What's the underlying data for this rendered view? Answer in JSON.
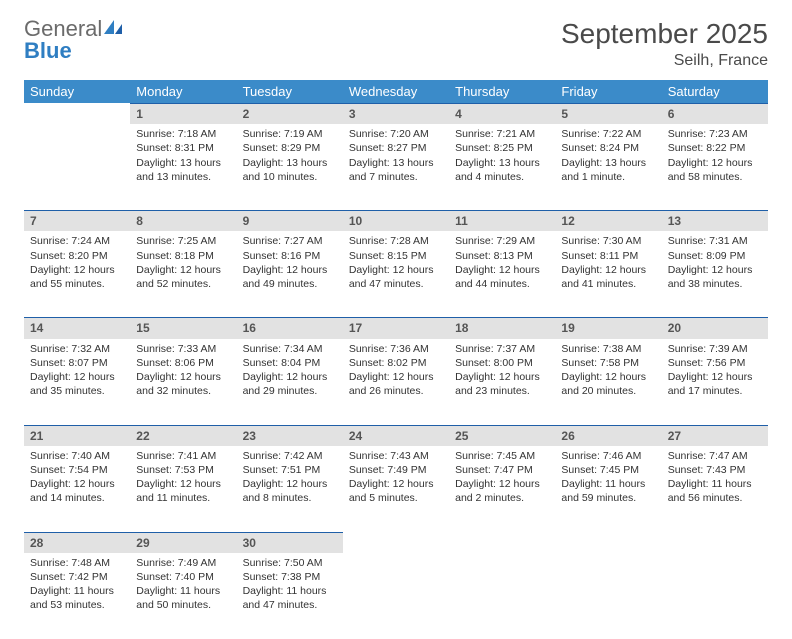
{
  "brand": {
    "general": "General",
    "blue": "Blue"
  },
  "title": {
    "month": "September 2025",
    "location": "Seilh, France"
  },
  "colors": {
    "header_bg": "#3b8bc9",
    "header_text": "#ffffff",
    "daynum_bg": "#e2e2e2",
    "daynum_border": "#1f5fa8",
    "text": "#333333",
    "brand_gray": "#6b6b6b",
    "brand_blue": "#2f7ec2",
    "background": "#ffffff"
  },
  "weekdays": [
    "Sunday",
    "Monday",
    "Tuesday",
    "Wednesday",
    "Thursday",
    "Friday",
    "Saturday"
  ],
  "weeks": [
    [
      {
        "num": "",
        "sunrise": "",
        "sunset": "",
        "daylight": ""
      },
      {
        "num": "1",
        "sunrise": "Sunrise: 7:18 AM",
        "sunset": "Sunset: 8:31 PM",
        "daylight": "Daylight: 13 hours and 13 minutes."
      },
      {
        "num": "2",
        "sunrise": "Sunrise: 7:19 AM",
        "sunset": "Sunset: 8:29 PM",
        "daylight": "Daylight: 13 hours and 10 minutes."
      },
      {
        "num": "3",
        "sunrise": "Sunrise: 7:20 AM",
        "sunset": "Sunset: 8:27 PM",
        "daylight": "Daylight: 13 hours and 7 minutes."
      },
      {
        "num": "4",
        "sunrise": "Sunrise: 7:21 AM",
        "sunset": "Sunset: 8:25 PM",
        "daylight": "Daylight: 13 hours and 4 minutes."
      },
      {
        "num": "5",
        "sunrise": "Sunrise: 7:22 AM",
        "sunset": "Sunset: 8:24 PM",
        "daylight": "Daylight: 13 hours and 1 minute."
      },
      {
        "num": "6",
        "sunrise": "Sunrise: 7:23 AM",
        "sunset": "Sunset: 8:22 PM",
        "daylight": "Daylight: 12 hours and 58 minutes."
      }
    ],
    [
      {
        "num": "7",
        "sunrise": "Sunrise: 7:24 AM",
        "sunset": "Sunset: 8:20 PM",
        "daylight": "Daylight: 12 hours and 55 minutes."
      },
      {
        "num": "8",
        "sunrise": "Sunrise: 7:25 AM",
        "sunset": "Sunset: 8:18 PM",
        "daylight": "Daylight: 12 hours and 52 minutes."
      },
      {
        "num": "9",
        "sunrise": "Sunrise: 7:27 AM",
        "sunset": "Sunset: 8:16 PM",
        "daylight": "Daylight: 12 hours and 49 minutes."
      },
      {
        "num": "10",
        "sunrise": "Sunrise: 7:28 AM",
        "sunset": "Sunset: 8:15 PM",
        "daylight": "Daylight: 12 hours and 47 minutes."
      },
      {
        "num": "11",
        "sunrise": "Sunrise: 7:29 AM",
        "sunset": "Sunset: 8:13 PM",
        "daylight": "Daylight: 12 hours and 44 minutes."
      },
      {
        "num": "12",
        "sunrise": "Sunrise: 7:30 AM",
        "sunset": "Sunset: 8:11 PM",
        "daylight": "Daylight: 12 hours and 41 minutes."
      },
      {
        "num": "13",
        "sunrise": "Sunrise: 7:31 AM",
        "sunset": "Sunset: 8:09 PM",
        "daylight": "Daylight: 12 hours and 38 minutes."
      }
    ],
    [
      {
        "num": "14",
        "sunrise": "Sunrise: 7:32 AM",
        "sunset": "Sunset: 8:07 PM",
        "daylight": "Daylight: 12 hours and 35 minutes."
      },
      {
        "num": "15",
        "sunrise": "Sunrise: 7:33 AM",
        "sunset": "Sunset: 8:06 PM",
        "daylight": "Daylight: 12 hours and 32 minutes."
      },
      {
        "num": "16",
        "sunrise": "Sunrise: 7:34 AM",
        "sunset": "Sunset: 8:04 PM",
        "daylight": "Daylight: 12 hours and 29 minutes."
      },
      {
        "num": "17",
        "sunrise": "Sunrise: 7:36 AM",
        "sunset": "Sunset: 8:02 PM",
        "daylight": "Daylight: 12 hours and 26 minutes."
      },
      {
        "num": "18",
        "sunrise": "Sunrise: 7:37 AM",
        "sunset": "Sunset: 8:00 PM",
        "daylight": "Daylight: 12 hours and 23 minutes."
      },
      {
        "num": "19",
        "sunrise": "Sunrise: 7:38 AM",
        "sunset": "Sunset: 7:58 PM",
        "daylight": "Daylight: 12 hours and 20 minutes."
      },
      {
        "num": "20",
        "sunrise": "Sunrise: 7:39 AM",
        "sunset": "Sunset: 7:56 PM",
        "daylight": "Daylight: 12 hours and 17 minutes."
      }
    ],
    [
      {
        "num": "21",
        "sunrise": "Sunrise: 7:40 AM",
        "sunset": "Sunset: 7:54 PM",
        "daylight": "Daylight: 12 hours and 14 minutes."
      },
      {
        "num": "22",
        "sunrise": "Sunrise: 7:41 AM",
        "sunset": "Sunset: 7:53 PM",
        "daylight": "Daylight: 12 hours and 11 minutes."
      },
      {
        "num": "23",
        "sunrise": "Sunrise: 7:42 AM",
        "sunset": "Sunset: 7:51 PM",
        "daylight": "Daylight: 12 hours and 8 minutes."
      },
      {
        "num": "24",
        "sunrise": "Sunrise: 7:43 AM",
        "sunset": "Sunset: 7:49 PM",
        "daylight": "Daylight: 12 hours and 5 minutes."
      },
      {
        "num": "25",
        "sunrise": "Sunrise: 7:45 AM",
        "sunset": "Sunset: 7:47 PM",
        "daylight": "Daylight: 12 hours and 2 minutes."
      },
      {
        "num": "26",
        "sunrise": "Sunrise: 7:46 AM",
        "sunset": "Sunset: 7:45 PM",
        "daylight": "Daylight: 11 hours and 59 minutes."
      },
      {
        "num": "27",
        "sunrise": "Sunrise: 7:47 AM",
        "sunset": "Sunset: 7:43 PM",
        "daylight": "Daylight: 11 hours and 56 minutes."
      }
    ],
    [
      {
        "num": "28",
        "sunrise": "Sunrise: 7:48 AM",
        "sunset": "Sunset: 7:42 PM",
        "daylight": "Daylight: 11 hours and 53 minutes."
      },
      {
        "num": "29",
        "sunrise": "Sunrise: 7:49 AM",
        "sunset": "Sunset: 7:40 PM",
        "daylight": "Daylight: 11 hours and 50 minutes."
      },
      {
        "num": "30",
        "sunrise": "Sunrise: 7:50 AM",
        "sunset": "Sunset: 7:38 PM",
        "daylight": "Daylight: 11 hours and 47 minutes."
      },
      {
        "num": "",
        "sunrise": "",
        "sunset": "",
        "daylight": ""
      },
      {
        "num": "",
        "sunrise": "",
        "sunset": "",
        "daylight": ""
      },
      {
        "num": "",
        "sunrise": "",
        "sunset": "",
        "daylight": ""
      },
      {
        "num": "",
        "sunrise": "",
        "sunset": "",
        "daylight": ""
      }
    ]
  ]
}
